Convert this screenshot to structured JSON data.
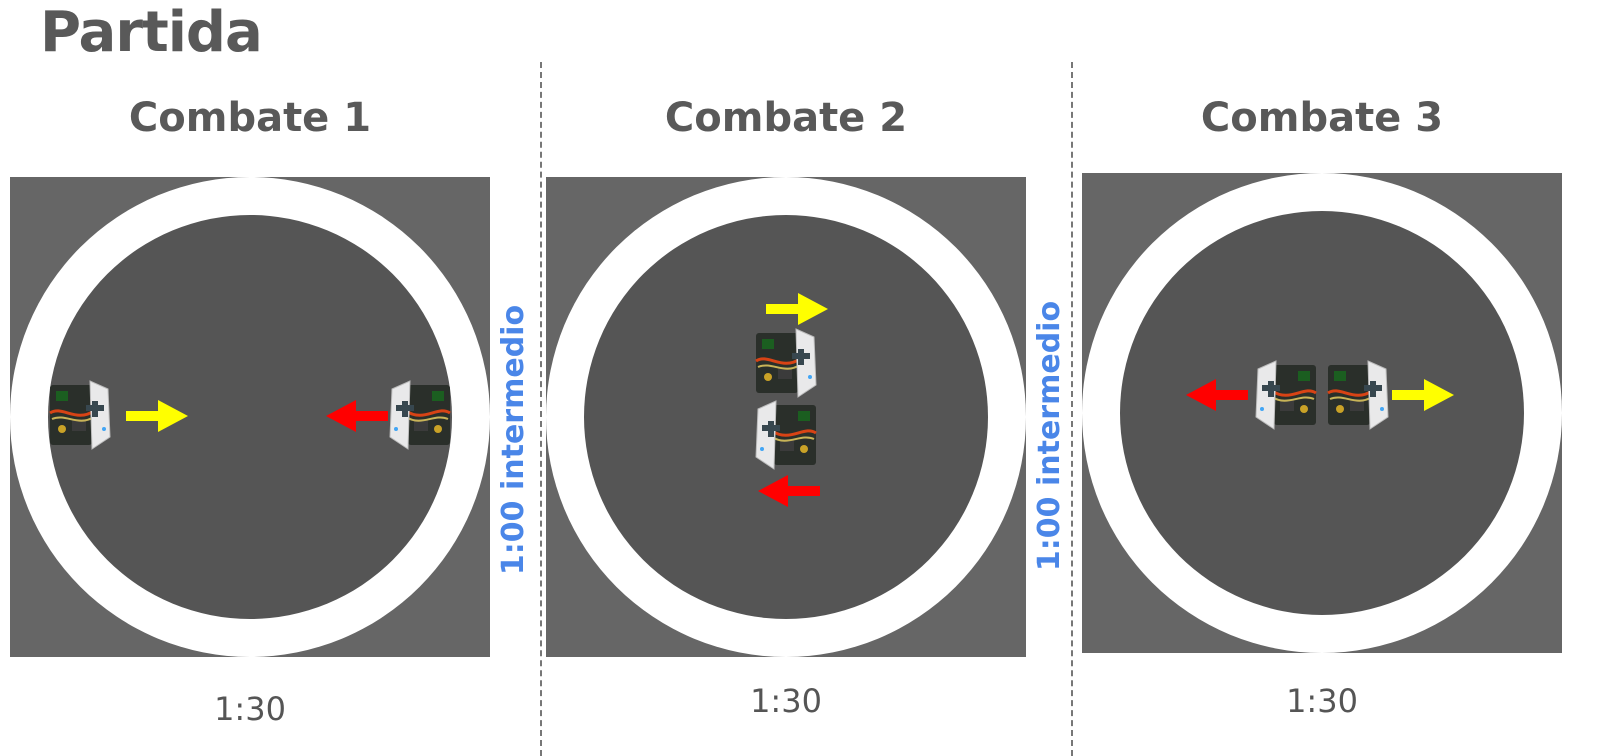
{
  "page": {
    "title": "Partida"
  },
  "colors": {
    "arena_outer": "#666666",
    "ring": "#ffffff",
    "dohyo": "#555555",
    "interval_text": "#4a86e8",
    "arrow_yellow": "#ffff00",
    "arrow_red": "#ff0000"
  },
  "combats": [
    {
      "title": "Combate 1",
      "time": "1:30"
    },
    {
      "title": "Combate 2",
      "time": "1:30"
    },
    {
      "title": "Combate 3",
      "time": "1:30"
    }
  ],
  "intervals": [
    {
      "label": "1:00 intermedio"
    },
    {
      "label": "1:00 intermedio"
    }
  ],
  "icons": {
    "robot": "sumo-robot-icon",
    "arrow": "arrow-icon"
  }
}
